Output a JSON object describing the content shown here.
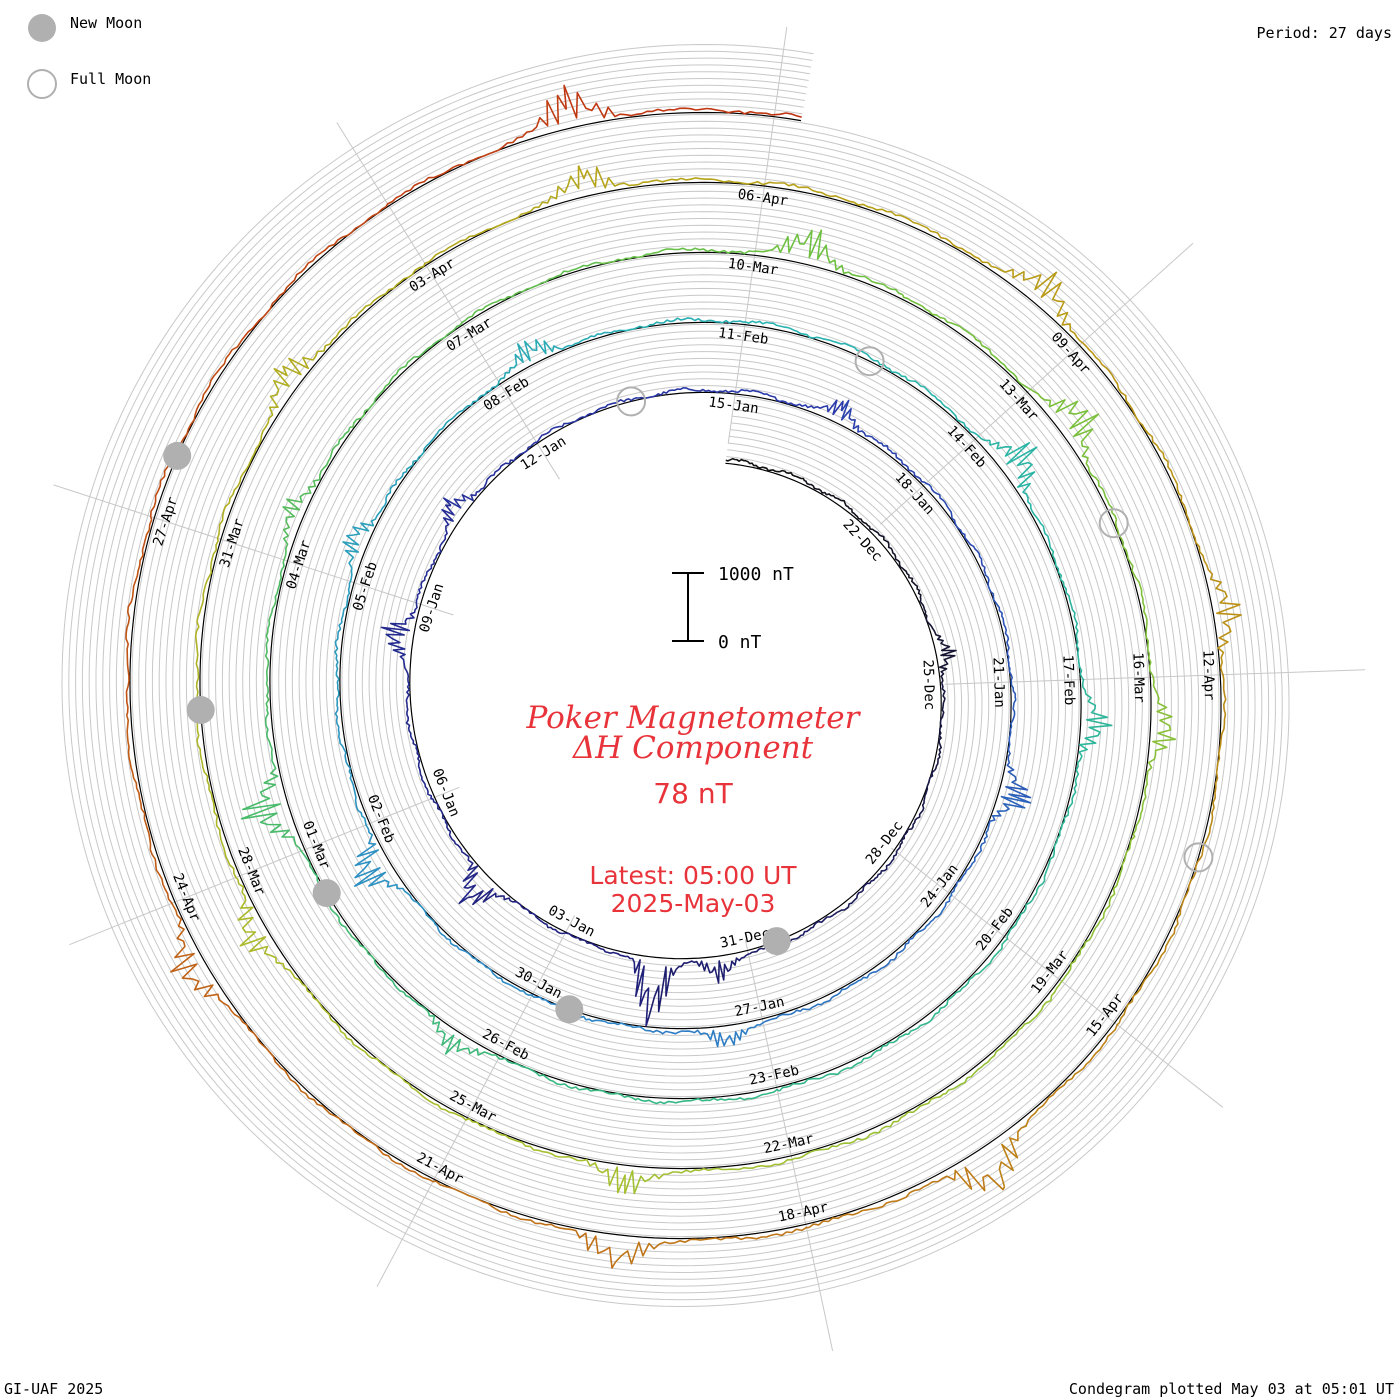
{
  "legend": {
    "new_moon_label": "New Moon",
    "full_moon_label": "Full Moon",
    "new_moon_color": "#b0b0b0",
    "full_moon_color": "#b0b0b0"
  },
  "period_label": "Period: 27 days",
  "footer": {
    "left": "GI-UAF 2025",
    "right": "Condegram plotted May 03 at 05:01 UT"
  },
  "center": {
    "title_line1": "Poker Magnetometer",
    "title_line2": "ΔH Component",
    "current_value": "78 nT",
    "latest_line1": "Latest: 05:00 UT",
    "latest_line2": "2025-May-03",
    "text_color": "#e8333a",
    "scale_top_label": "1000 nT",
    "scale_bottom_label": "0 nT"
  },
  "chart_data": {
    "type": "line",
    "layout": "spiral condegram",
    "start": "2024-12-19",
    "end": "2025-05-03",
    "period_days": 27,
    "units": "nT",
    "scale_bar": [
      0,
      1000
    ],
    "series_colors": [
      "#111111",
      "#20207a",
      "#2a3aaa",
      "#2f86c8",
      "#28b4b0",
      "#38b880",
      "#6fc040",
      "#a8c030",
      "#b8a018",
      "#c07018",
      "#c03010"
    ],
    "date_labels": [
      "22-Dec",
      "25-Dec",
      "28-Dec",
      "31-Dec",
      "03-Jan",
      "06-Jan",
      "09-Jan",
      "12-Jan",
      "15-Jan",
      "18-Jan",
      "21-Jan",
      "24-Jan",
      "27-Jan",
      "30-Jan",
      "02-Feb",
      "05-Feb",
      "08-Feb",
      "11-Feb",
      "14-Feb",
      "17-Feb",
      "20-Feb",
      "23-Feb",
      "26-Feb",
      "01-Mar",
      "04-Mar",
      "07-Mar",
      "10-Mar",
      "13-Mar",
      "16-Mar",
      "19-Mar",
      "22-Mar",
      "25-Mar",
      "28-Mar",
      "31-Mar",
      "03-Apr",
      "06-Apr",
      "09-Apr",
      "12-Apr",
      "15-Apr",
      "18-Apr",
      "21-Apr",
      "24-Apr",
      "27-Apr"
    ],
    "new_moons": [
      "2024-12-30",
      "2025-01-29",
      "2025-02-28",
      "2025-03-29",
      "2025-04-27"
    ],
    "full_moons": [
      "2025-01-13",
      "2025-02-12",
      "2025-03-14",
      "2025-04-13"
    ],
    "events": [
      {
        "date": "2024-12-24",
        "delta_h": 280
      },
      {
        "date": "2024-12-31",
        "delta_h": 350
      },
      {
        "date": "2025-01-01",
        "delta_h": 1100
      },
      {
        "date": "2025-01-04",
        "delta_h": 600
      },
      {
        "date": "2025-01-08",
        "delta_h": 450
      },
      {
        "date": "2025-01-10",
        "delta_h": 350
      },
      {
        "date": "2025-01-16",
        "delta_h": 320
      },
      {
        "date": "2025-01-22",
        "delta_h": 500
      },
      {
        "date": "2025-01-27",
        "delta_h": 300
      },
      {
        "date": "2025-02-01",
        "delta_h": 650
      },
      {
        "date": "2025-02-05",
        "delta_h": 350
      },
      {
        "date": "2025-02-08",
        "delta_h": 380
      },
      {
        "date": "2025-02-14",
        "delta_h": 600
      },
      {
        "date": "2025-02-17",
        "delta_h": 450
      },
      {
        "date": "2025-02-26",
        "delta_h": 350
      },
      {
        "date": "2025-03-01",
        "delta_h": 700
      },
      {
        "date": "2025-03-04",
        "delta_h": 300
      },
      {
        "date": "2025-03-10",
        "delta_h": 550
      },
      {
        "date": "2025-03-13",
        "delta_h": 600
      },
      {
        "date": "2025-03-16",
        "delta_h": 400
      },
      {
        "date": "2025-03-23",
        "delta_h": 400
      },
      {
        "date": "2025-03-27",
        "delta_h": 450
      },
      {
        "date": "2025-04-01",
        "delta_h": 400
      },
      {
        "date": "2025-04-04",
        "delta_h": 450
      },
      {
        "date": "2025-04-08",
        "delta_h": 500
      },
      {
        "date": "2025-04-11",
        "delta_h": 400
      },
      {
        "date": "2025-04-16",
        "delta_h": 750
      },
      {
        "date": "2025-04-19",
        "delta_h": 500
      },
      {
        "date": "2025-04-23",
        "delta_h": 500
      },
      {
        "date": "2025-05-01",
        "delta_h": 600
      }
    ]
  }
}
